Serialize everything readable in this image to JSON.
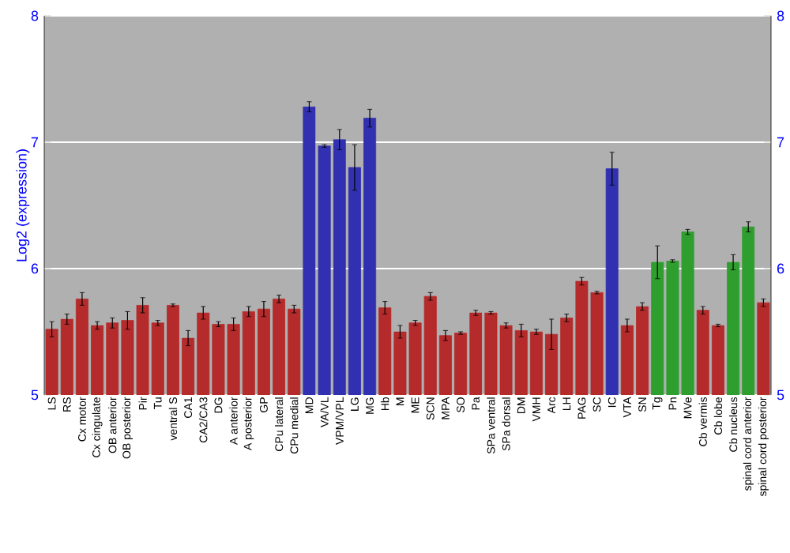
{
  "chart_data": {
    "type": "bar",
    "ylabel": "Log2 (expression)",
    "categories": [
      "LS",
      "RS",
      "Cx motor",
      "Cx cingulate",
      "OB anterior",
      "OB posterior",
      "Pir",
      "Tu",
      "ventral S",
      "CA1",
      "CA2/CA3",
      "DG",
      "A anterior",
      "A posterior",
      "GP",
      "CPu lateral",
      "CPu medial",
      "MD",
      "VA/VL",
      "VPM/VPL",
      "LG",
      "MG",
      "Hb",
      "M",
      "ME",
      "SCN",
      "MPA",
      "SO",
      "Pa",
      "SPa ventral",
      "SPa dorsal",
      "DM",
      "VMH",
      "Arc",
      "LH",
      "PAG",
      "SC",
      "IC",
      "VTA",
      "SN",
      "Tg",
      "Pn",
      "MVe",
      "Cb vermis",
      "Cb lobe",
      "Cb nucleus",
      "spinal cord anterior",
      "spinal cord posterior"
    ],
    "values": [
      5.52,
      5.6,
      5.76,
      5.55,
      5.57,
      5.59,
      5.71,
      5.57,
      5.71,
      5.45,
      5.65,
      5.56,
      5.56,
      5.66,
      5.68,
      5.76,
      5.68,
      7.28,
      6.97,
      7.02,
      6.8,
      7.19,
      5.69,
      5.5,
      5.57,
      5.78,
      5.47,
      5.49,
      5.65,
      5.65,
      5.55,
      5.51,
      5.5,
      5.48,
      5.61,
      5.9,
      5.81,
      6.79,
      5.55,
      5.7,
      6.05,
      6.06,
      6.29,
      5.67,
      5.55,
      6.05,
      6.33,
      5.73
    ],
    "errors": [
      0.06,
      0.04,
      0.05,
      0.03,
      0.04,
      0.07,
      0.06,
      0.02,
      0.01,
      0.06,
      0.05,
      0.02,
      0.05,
      0.04,
      0.06,
      0.03,
      0.03,
      0.04,
      0.01,
      0.08,
      0.18,
      0.07,
      0.05,
      0.05,
      0.02,
      0.03,
      0.04,
      0.01,
      0.02,
      0.01,
      0.02,
      0.05,
      0.02,
      0.12,
      0.03,
      0.03,
      0.01,
      0.13,
      0.05,
      0.03,
      0.13,
      0.01,
      0.02,
      0.03,
      0.01,
      0.06,
      0.04,
      0.03
    ],
    "colors": [
      "#b52a2a",
      "#b52a2a",
      "#b52a2a",
      "#b52a2a",
      "#b52a2a",
      "#b52a2a",
      "#b52a2a",
      "#b52a2a",
      "#b52a2a",
      "#b52a2a",
      "#b52a2a",
      "#b52a2a",
      "#b52a2a",
      "#b52a2a",
      "#b52a2a",
      "#b52a2a",
      "#b52a2a",
      "#3030b0",
      "#3030b0",
      "#3030b0",
      "#3030b0",
      "#3030b0",
      "#b52a2a",
      "#b52a2a",
      "#b52a2a",
      "#b52a2a",
      "#b52a2a",
      "#b52a2a",
      "#b52a2a",
      "#b52a2a",
      "#b52a2a",
      "#b52a2a",
      "#b52a2a",
      "#b52a2a",
      "#b52a2a",
      "#b52a2a",
      "#b52a2a",
      "#3030b0",
      "#b52a2a",
      "#b52a2a",
      "#2e9e2e",
      "#2e9e2e",
      "#2e9e2e",
      "#b52a2a",
      "#b52a2a",
      "#2e9e2e",
      "#2e9e2e",
      "#b52a2a"
    ],
    "ylim": [
      5,
      8
    ],
    "yticks": [
      5,
      6,
      7,
      8
    ],
    "y2lim": [
      5,
      8
    ],
    "y2ticks": [
      5,
      6,
      7,
      8
    ],
    "grid": "y"
  }
}
